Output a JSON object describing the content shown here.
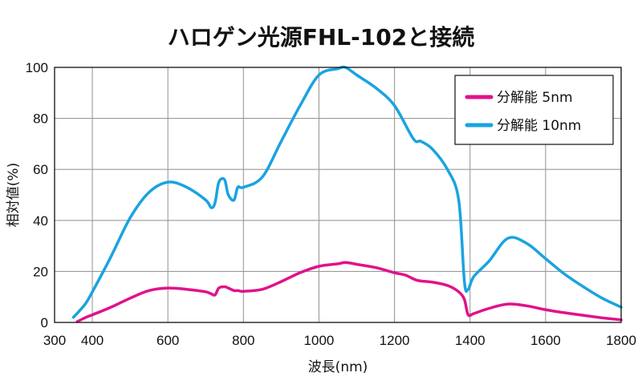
{
  "chart_data": {
    "type": "line",
    "title": "ハロゲン光源FHL-102と接続",
    "xlabel": "波長(nm)",
    "ylabel": "相対値(%)",
    "xlim": [
      300,
      1800
    ],
    "ylim": [
      0,
      100
    ],
    "xticks": [
      300,
      400,
      600,
      800,
      1000,
      1200,
      1400,
      1600,
      1800
    ],
    "yticks": [
      0,
      20,
      40,
      60,
      80,
      100
    ],
    "xgrid": [
      400,
      600,
      800,
      1000,
      1200,
      1400,
      1600,
      1800
    ],
    "grid": true,
    "legend_position": "top-right",
    "series": [
      {
        "name": "分解能 5nm",
        "color": "#e0128a",
        "x": [
          360,
          380,
          400,
          450,
          500,
          550,
          600,
          650,
          700,
          715,
          725,
          735,
          750,
          760,
          775,
          785,
          800,
          850,
          900,
          950,
          1000,
          1050,
          1070,
          1100,
          1150,
          1200,
          1230,
          1260,
          1300,
          1340,
          1370,
          1385,
          1395,
          1410,
          1450,
          1500,
          1550,
          1600,
          1650,
          1700,
          1750,
          1800
        ],
        "y": [
          0.3,
          1.8,
          3,
          6,
          9.5,
          12.5,
          13.5,
          13,
          12,
          11.2,
          10.8,
          13.5,
          14,
          13.5,
          12.5,
          12.5,
          12.2,
          13,
          16,
          19.5,
          22,
          23,
          23.5,
          22.8,
          21.5,
          19.5,
          18.5,
          16.5,
          15.8,
          14.5,
          12,
          9,
          3,
          3.5,
          5.5,
          7.2,
          6.5,
          5,
          3.8,
          2.8,
          1.8,
          1
        ]
      },
      {
        "name": "分解能 10nm",
        "color": "#1aa3e0",
        "x": [
          350,
          380,
          400,
          450,
          500,
          550,
          600,
          650,
          700,
          715,
          725,
          735,
          750,
          760,
          775,
          785,
          800,
          850,
          900,
          950,
          1000,
          1050,
          1070,
          1100,
          1150,
          1200,
          1250,
          1270,
          1300,
          1340,
          1370,
          1385,
          1395,
          1410,
          1450,
          1500,
          1550,
          1600,
          1650,
          1700,
          1750,
          1800
        ],
        "y": [
          2,
          7,
          12,
          26,
          41,
          51,
          55,
          53,
          48,
          45,
          47,
          55,
          56,
          50,
          48,
          53,
          53,
          57,
          71,
          85,
          97,
          99.5,
          100,
          97,
          92,
          85,
          72,
          71,
          68,
          60,
          48,
          16,
          13,
          18,
          24,
          33,
          31,
          25,
          19,
          14,
          9.5,
          6
        ]
      }
    ]
  }
}
